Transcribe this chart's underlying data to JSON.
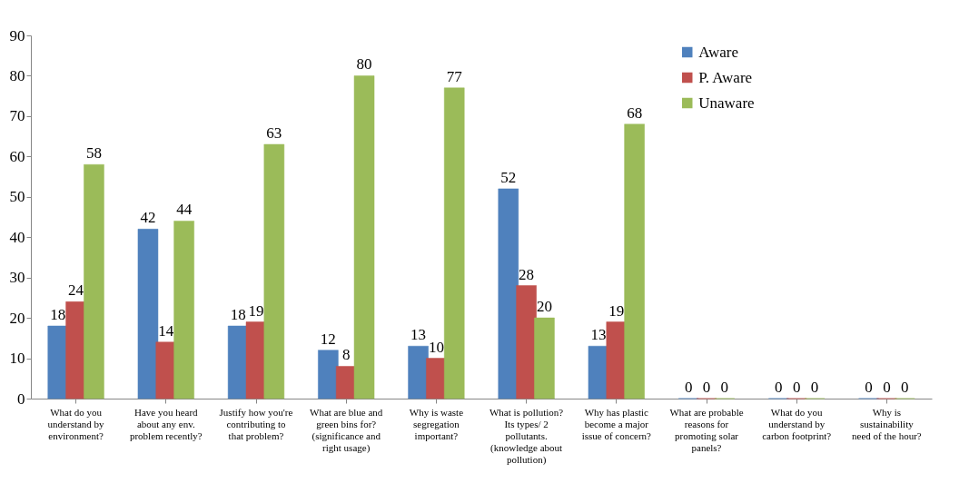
{
  "chart_data": {
    "type": "bar",
    "categories": [
      "What do you understand by environment?",
      "Have you heard about any env. problem recently?",
      "Justify how you're contributing to that problem?",
      "What are blue and green bins for? (significance and right usage)",
      "Why is waste segregation important?",
      "What is pollution? Its types/ 2 pollutants. (knowledge about pollution)",
      "Why has plastic become a major issue of concern?",
      "What are probable reasons for promoting solar panels?",
      "What do you understand by carbon footprint?",
      "Why is sustainability need of the hour?"
    ],
    "series": [
      {
        "name": "Aware",
        "color": "#4f81bd",
        "values": [
          18,
          42,
          18,
          12,
          13,
          52,
          13,
          0,
          0,
          0
        ]
      },
      {
        "name": "P. Aware",
        "color": "#c0504d",
        "values": [
          24,
          14,
          19,
          8,
          10,
          28,
          19,
          0,
          0,
          0
        ]
      },
      {
        "name": "Unaware",
        "color": "#9bbb59",
        "values": [
          58,
          44,
          63,
          80,
          77,
          20,
          68,
          0,
          0,
          0
        ]
      }
    ],
    "ylim": [
      0,
      90
    ],
    "yticks": [
      0,
      10,
      20,
      30,
      40,
      50,
      60,
      70,
      80,
      90
    ],
    "grid": false,
    "legend": "top right",
    "data_labels": true
  }
}
